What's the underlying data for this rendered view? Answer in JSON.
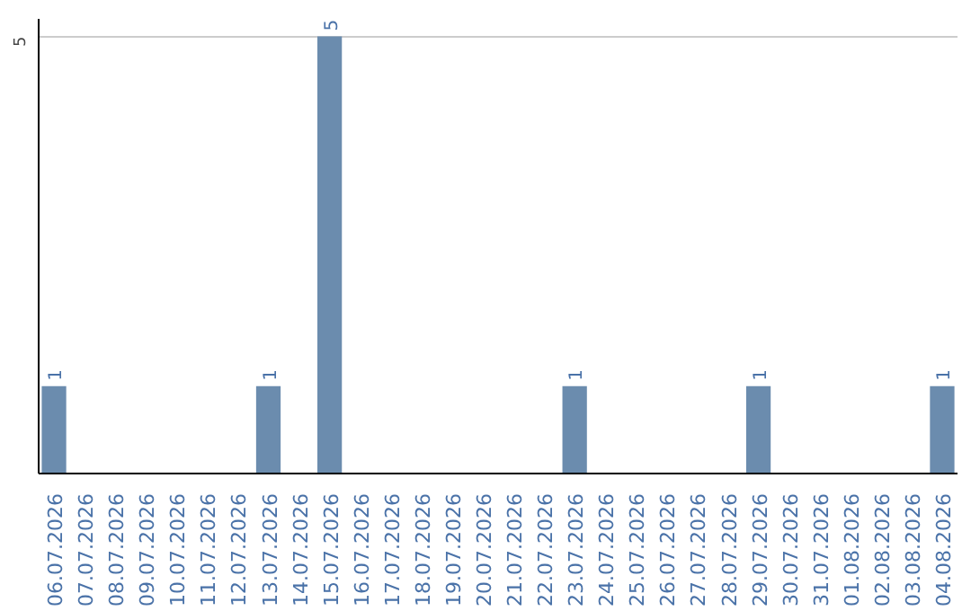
{
  "chart_data": {
    "type": "bar",
    "categories": [
      "06.07.2026",
      "07.07.2026",
      "08.07.2026",
      "09.07.2026",
      "10.07.2026",
      "11.07.2026",
      "12.07.2026",
      "13.07.2026",
      "14.07.2026",
      "15.07.2026",
      "16.07.2026",
      "17.07.2026",
      "18.07.2026",
      "19.07.2026",
      "20.07.2026",
      "21.07.2026",
      "22.07.2026",
      "23.07.2026",
      "24.07.2026",
      "25.07.2026",
      "26.07.2026",
      "27.07.2026",
      "28.07.2026",
      "29.07.2026",
      "30.07.2026",
      "31.07.2026",
      "01.08.2026",
      "02.08.2026",
      "03.08.2026",
      "04.08.2026"
    ],
    "values": [
      1,
      0,
      0,
      0,
      0,
      0,
      0,
      1,
      0,
      5,
      0,
      0,
      0,
      0,
      0,
      0,
      0,
      1,
      0,
      0,
      0,
      0,
      0,
      1,
      0,
      0,
      0,
      0,
      0,
      1
    ],
    "value_labels": [
      "1",
      null,
      null,
      null,
      null,
      null,
      null,
      "1",
      null,
      "5",
      null,
      null,
      null,
      null,
      null,
      null,
      null,
      "1",
      null,
      null,
      null,
      null,
      null,
      "1",
      null,
      null,
      null,
      null,
      null,
      "1"
    ],
    "color": "#6b8cae",
    "ylim": [
      0,
      5.2
    ],
    "yticks": [
      5
    ],
    "grid": "y"
  }
}
